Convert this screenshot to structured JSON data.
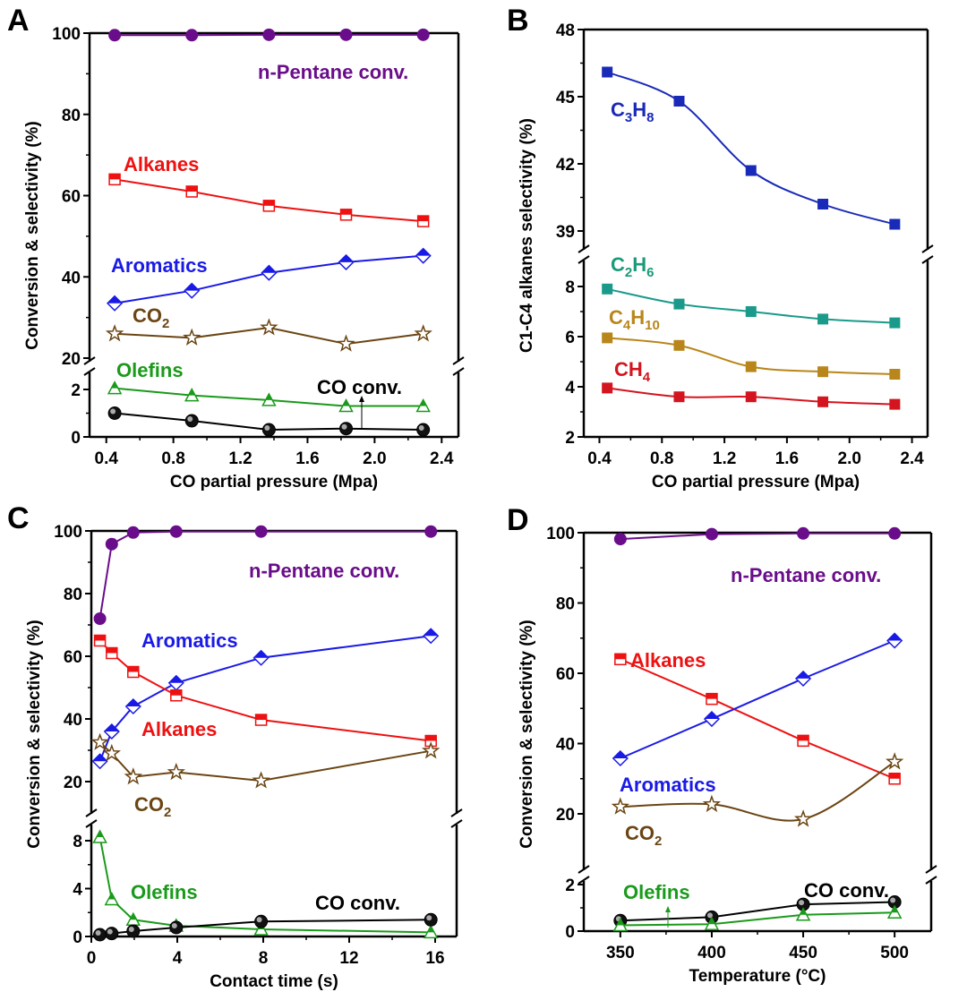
{
  "chart_data": [
    {
      "panel": "A",
      "type": "line",
      "xlabel": "CO partial pressure (Mpa)",
      "ylabel": "Conversion & selectivity (%)",
      "xlim": [
        0.3,
        2.5
      ],
      "x_ticks": [
        "0.4",
        "0.8",
        "1.2",
        "1.6",
        "2.0",
        "2.4"
      ],
      "y_break": {
        "lower": [
          0,
          2.8
        ],
        "upper": [
          20,
          100
        ]
      },
      "y_ticks_upper": [
        "20",
        "40",
        "60",
        "80",
        "100"
      ],
      "y_ticks_lower": [
        "0",
        "2"
      ],
      "x": [
        0.45,
        0.91,
        1.37,
        1.83,
        2.29
      ],
      "series": [
        {
          "name": "n-Pentane conv.",
          "color": "#6a0d8a",
          "marker": "circle",
          "values": [
            99.5,
            99.5,
            99.6,
            99.6,
            99.6
          ]
        },
        {
          "name": "Alkanes",
          "color": "#ee1111",
          "marker": "square-half",
          "values": [
            64,
            61,
            57.5,
            55.3,
            53.7
          ]
        },
        {
          "name": "Aromatics",
          "color": "#1a1ae6",
          "marker": "diamond-half",
          "values": [
            33.5,
            36.6,
            41,
            43.6,
            45.2
          ]
        },
        {
          "name": "CO2",
          "color": "#6b4513",
          "marker": "star",
          "values": [
            26,
            25,
            27.5,
            23.5,
            26
          ]
        },
        {
          "name": "Olefins",
          "color": "#1a9a1a",
          "marker": "triangle-half",
          "values": [
            2.05,
            1.75,
            1.55,
            1.3,
            1.3
          ]
        },
        {
          "name": "CO conv.",
          "color": "#000000",
          "marker": "sphere",
          "values": [
            1.0,
            0.68,
            0.3,
            0.35,
            0.3
          ]
        }
      ]
    },
    {
      "panel": "B",
      "type": "line",
      "xlabel": "CO partial pressure (Mpa)",
      "ylabel": "C1-C4 alkanes selectivity (%)",
      "xlim": [
        0.3,
        2.5
      ],
      "x_ticks": [
        "0.4",
        "0.8",
        "1.2",
        "1.6",
        "2.0",
        "2.4"
      ],
      "y_break": {
        "lower": [
          2,
          9
        ],
        "upper": [
          38,
          48
        ]
      },
      "y_ticks_upper": [
        "39",
        "42",
        "45",
        "48"
      ],
      "y_ticks_lower": [
        "2",
        "4",
        "6",
        "8"
      ],
      "x": [
        0.45,
        0.91,
        1.37,
        1.83,
        2.29
      ],
      "series": [
        {
          "name": "C3H8",
          "color": "#1a2ab8",
          "marker": "square",
          "values": [
            46.1,
            44.8,
            41.7,
            40.2,
            39.3
          ]
        },
        {
          "name": "C2H6",
          "color": "#1a9a8a",
          "marker": "square",
          "values": [
            7.9,
            7.3,
            7.0,
            6.7,
            6.55
          ]
        },
        {
          "name": "C4H10",
          "color": "#b8861a",
          "marker": "square",
          "values": [
            5.95,
            5.65,
            4.8,
            4.6,
            4.5
          ]
        },
        {
          "name": "CH4",
          "color": "#d4141e",
          "marker": "square",
          "values": [
            3.95,
            3.6,
            3.6,
            3.4,
            3.3
          ]
        }
      ]
    },
    {
      "panel": "C",
      "type": "line",
      "xlabel": "Contact time (s)",
      "ylabel": "Conversion & selectivity (%)",
      "xlim": [
        0,
        17
      ],
      "x_ticks": [
        "0",
        "4",
        "8",
        "12",
        "16"
      ],
      "y_break": {
        "lower": [
          0,
          10
        ],
        "upper": [
          15,
          100
        ]
      },
      "y_ticks_upper": [
        "20",
        "40",
        "60",
        "80",
        "100"
      ],
      "y_ticks_lower": [
        "0",
        "4",
        "8"
      ],
      "x": [
        0.4,
        0.95,
        1.95,
        3.95,
        7.9,
        15.8
      ],
      "series": [
        {
          "name": "n-Pentane conv.",
          "color": "#6a0d8a",
          "marker": "circle",
          "values": [
            72,
            95.8,
            99.5,
            99.8,
            99.8,
            99.8
          ]
        },
        {
          "name": "Aromatics",
          "color": "#1a1ae6",
          "marker": "diamond-half",
          "values": [
            26.5,
            36,
            44,
            51.5,
            59.5,
            66.5
          ]
        },
        {
          "name": "Alkanes",
          "color": "#ee1111",
          "marker": "square-half",
          "values": [
            65,
            61,
            55,
            47.5,
            39.7,
            33
          ]
        },
        {
          "name": "CO2",
          "color": "#6b4513",
          "marker": "star",
          "values": [
            32.5,
            29,
            21.5,
            23,
            20.3,
            29.8
          ]
        },
        {
          "name": "Olefins",
          "color": "#1a9a1a",
          "marker": "triangle-half",
          "values": [
            8.3,
            3.1,
            1.4,
            0.9,
            0.6,
            0.35
          ]
        },
        {
          "name": "CO conv.",
          "color": "#000000",
          "marker": "sphere",
          "values": [
            0.15,
            0.25,
            0.45,
            0.75,
            1.25,
            1.4
          ]
        }
      ]
    },
    {
      "panel": "D",
      "type": "line",
      "xlabel": "Temperature (°C)",
      "ylabel": "Conversion & selectivity (%)",
      "xlim": [
        330,
        520
      ],
      "x_ticks": [
        "350",
        "400",
        "450",
        "500"
      ],
      "y_break": {
        "lower": [
          0,
          2.2
        ],
        "upper": [
          5,
          100
        ]
      },
      "y_ticks_upper": [
        "20",
        "40",
        "60",
        "80",
        "100"
      ],
      "y_ticks_lower": [
        "0",
        "2"
      ],
      "x": [
        350,
        400,
        450,
        500
      ],
      "series": [
        {
          "name": "n-Pentane conv.",
          "color": "#6a0d8a",
          "marker": "circle",
          "values": [
            98.2,
            99.6,
            99.8,
            99.8
          ]
        },
        {
          "name": "Alkanes",
          "color": "#ee1111",
          "marker": "square-half",
          "values": [
            64,
            52.7,
            40.8,
            30
          ]
        },
        {
          "name": "Aromatics",
          "color": "#1a1ae6",
          "marker": "diamond-half",
          "values": [
            35.8,
            47,
            58.5,
            69.3
          ]
        },
        {
          "name": "CO2",
          "color": "#6b4513",
          "marker": "star",
          "values": [
            22,
            22.7,
            18.5,
            34.8
          ]
        },
        {
          "name": "CO conv.",
          "color": "#000000",
          "marker": "sphere",
          "values": [
            0.45,
            0.6,
            1.15,
            1.25
          ]
        },
        {
          "name": "Olefins",
          "color": "#1a9a1a",
          "marker": "triangle-half",
          "values": [
            0.25,
            0.3,
            0.7,
            0.8
          ]
        }
      ]
    }
  ],
  "labels": {
    "A": {
      "panel": "A",
      "npentane": "n-Pentane conv.",
      "alkanes": "Alkanes",
      "aromatics": "Aromatics",
      "co2": "CO",
      "co2_sub": "2",
      "olefins": "Olefins",
      "coconv": "CO conv."
    },
    "B": {
      "panel": "B",
      "c3": "C",
      "c3_s1": "3",
      "c3_h": "H",
      "c3_s2": "8",
      "c2": "C",
      "c2_s1": "2",
      "c2_h": "H",
      "c2_s2": "6",
      "c4": "C",
      "c4_s1": "4",
      "c4_h": "H",
      "c4_s2": "10",
      "ch": "CH",
      "ch_s": "4"
    },
    "C": {
      "panel": "C",
      "npentane": "n-Pentane conv.",
      "alkanes": "Alkanes",
      "aromatics": "Aromatics",
      "co2": "CO",
      "co2_sub": "2",
      "olefins": "Olefins",
      "coconv": "CO conv."
    },
    "D": {
      "panel": "D",
      "npentane": "n-Pentane conv.",
      "alkanes": "Alkanes",
      "aromatics": "Aromatics",
      "co2": "CO",
      "co2_sub": "2",
      "olefins": "Olefins",
      "coconv": "CO conv."
    }
  }
}
